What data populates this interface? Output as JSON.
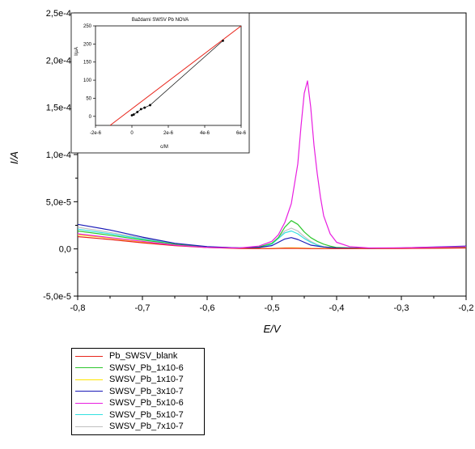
{
  "chart_data": {
    "type": "line",
    "xlabel": "E/V",
    "ylabel": "I/A",
    "xlim": [
      -0.8,
      -0.2
    ],
    "ylim": [
      -5e-05,
      0.00025
    ],
    "x_ticks": [
      "-0,8",
      "-0,7",
      "-0,6",
      "-0,5",
      "-0,4",
      "-0,3",
      "-0,2"
    ],
    "y_ticks": [
      "2,5e-4",
      "2,0e-4",
      "1,5e-4",
      "1,0e-4",
      "5,0e-5",
      "0,0",
      "-5,0e-5"
    ],
    "grid": false,
    "legend_position": "bottom-left",
    "series": [
      {
        "name": "Pb_SWSV_blank",
        "color": "#e8251b",
        "x": [
          -0.8,
          -0.75,
          -0.7,
          -0.65,
          -0.6,
          -0.55,
          -0.5,
          -0.48,
          -0.46,
          -0.44,
          -0.4,
          -0.35,
          -0.3,
          -0.25,
          -0.2
        ],
        "y": [
          1.3e-05,
          1e-05,
          6.5e-06,
          3.5e-06,
          1.5e-06,
          5e-07,
          3e-07,
          7e-07,
          6e-07,
          3e-07,
          3e-07,
          4e-07,
          5e-07,
          7e-07,
          1e-06
        ]
      },
      {
        "name": "SWSV_Pb_1x10-6",
        "color": "#2ec72e",
        "x": [
          -0.8,
          -0.75,
          -0.7,
          -0.65,
          -0.6,
          -0.55,
          -0.52,
          -0.5,
          -0.49,
          -0.48,
          -0.47,
          -0.46,
          -0.45,
          -0.44,
          -0.43,
          -0.42,
          -0.41,
          -0.4,
          -0.35,
          -0.3,
          -0.25,
          -0.2
        ],
        "y": [
          1.9e-05,
          1.45e-05,
          9.5e-06,
          5e-06,
          2e-06,
          1e-06,
          2e-06,
          6e-06,
          1.2e-05,
          2.3e-05,
          3e-05,
          2.6e-05,
          1.8e-05,
          1.2e-05,
          8e-06,
          5e-06,
          3e-06,
          1.5e-06,
          5e-07,
          7e-07,
          1e-06,
          1.5e-06
        ]
      },
      {
        "name": "SWSV_Pb_1x10-7",
        "color": "#ffe600",
        "x": [
          -0.8,
          -0.75,
          -0.7,
          -0.65,
          -0.6,
          -0.55,
          -0.5,
          -0.48,
          -0.47,
          -0.46,
          -0.44,
          -0.4,
          -0.35,
          -0.3,
          -0.25,
          -0.2
        ],
        "y": [
          1.5e-05,
          1.15e-05,
          7.5e-06,
          4e-06,
          1.5e-06,
          6e-07,
          5e-07,
          1e-06,
          1.2e-06,
          1e-06,
          6e-07,
          4e-07,
          4e-07,
          6e-07,
          9e-07,
          1.2e-06
        ]
      },
      {
        "name": "SWSV_Pb_3x10-7",
        "color": "#1a1ab8",
        "x": [
          -0.8,
          -0.75,
          -0.7,
          -0.65,
          -0.6,
          -0.55,
          -0.52,
          -0.5,
          -0.49,
          -0.48,
          -0.47,
          -0.46,
          -0.45,
          -0.44,
          -0.42,
          -0.4,
          -0.35,
          -0.3,
          -0.25,
          -0.2
        ],
        "y": [
          2.6e-05,
          2e-05,
          1.25e-05,
          6e-06,
          2.5e-06,
          1e-06,
          1.5e-06,
          3.5e-06,
          7e-06,
          1.05e-05,
          1.2e-05,
          1e-05,
          7e-06,
          4e-06,
          2e-06,
          1e-06,
          6e-07,
          1e-06,
          2e-06,
          3e-06
        ]
      },
      {
        "name": "SWSV_Pb_5x10-6",
        "color": "#e81ee0",
        "x": [
          -0.8,
          -0.75,
          -0.7,
          -0.65,
          -0.6,
          -0.55,
          -0.52,
          -0.5,
          -0.49,
          -0.48,
          -0.47,
          -0.46,
          -0.455,
          -0.45,
          -0.445,
          -0.44,
          -0.435,
          -0.43,
          -0.425,
          -0.42,
          -0.41,
          -0.4,
          -0.38,
          -0.35,
          -0.3,
          -0.25,
          -0.2
        ],
        "y": [
          1.6e-05,
          1.2e-05,
          8e-06,
          4e-06,
          1.5e-06,
          1e-06,
          3e-06,
          8e-06,
          1.5e-05,
          2.8e-05,
          4.8e-05,
          9e-05,
          0.00013,
          0.000165,
          0.000178,
          0.00015,
          0.00011,
          8e-05,
          5.5e-05,
          3.5e-05,
          1.6e-05,
          7e-06,
          2.5e-06,
          1e-06,
          1.2e-06,
          1.8e-06,
          2.5e-06
        ]
      },
      {
        "name": "SWSV_Pb_5x10-7",
        "color": "#33e0e0",
        "x": [
          -0.8,
          -0.75,
          -0.7,
          -0.65,
          -0.6,
          -0.55,
          -0.52,
          -0.5,
          -0.49,
          -0.48,
          -0.47,
          -0.46,
          -0.45,
          -0.44,
          -0.43,
          -0.42,
          -0.4,
          -0.35,
          -0.3,
          -0.25,
          -0.2
        ],
        "y": [
          2.1e-05,
          1.6e-05,
          1.05e-05,
          5e-06,
          2e-06,
          1e-06,
          2e-06,
          5e-06,
          1.1e-05,
          1.7e-05,
          1.9e-05,
          1.6e-05,
          1.1e-05,
          7e-06,
          4e-06,
          2e-06,
          1e-06,
          5e-07,
          8e-07,
          1.2e-06,
          1.8e-06
        ]
      },
      {
        "name": "SWSV_Pb_7x10-7",
        "color": "#c0c0c0",
        "x": [
          -0.8,
          -0.75,
          -0.7,
          -0.65,
          -0.6,
          -0.55,
          -0.52,
          -0.5,
          -0.49,
          -0.48,
          -0.47,
          -0.46,
          -0.45,
          -0.44,
          -0.43,
          -0.42,
          -0.4,
          -0.35,
          -0.3,
          -0.25,
          -0.2
        ],
        "y": [
          2.3e-05,
          1.75e-05,
          1.15e-05,
          5.5e-06,
          2.2e-06,
          1e-06,
          2e-06,
          5.5e-06,
          1.2e-05,
          1.9e-05,
          2.2e-05,
          1.9e-05,
          1.3e-05,
          8e-06,
          4.5e-06,
          2.3e-06,
          1.1e-06,
          6e-07,
          9e-07,
          1.3e-06,
          2e-06
        ]
      }
    ],
    "inset": {
      "type": "scatter",
      "title": "Baždarni SWSV Pb NOVA",
      "xlabel": "c/M",
      "ylabel": "I/µA",
      "xlim": [
        -2e-06,
        6e-06
      ],
      "ylim": [
        -25,
        250
      ],
      "x_ticks": [
        "-2e-6",
        "0",
        "2e-6",
        "4e-6",
        "6e-6"
      ],
      "y_ticks": [
        "250",
        "200",
        "150",
        "100",
        "50",
        "0"
      ],
      "points": {
        "x": [
          0,
          1e-07,
          3e-07,
          5e-07,
          7e-07,
          1e-06,
          5e-06
        ],
        "y": [
          3,
          5,
          12,
          20,
          24,
          31,
          209
        ],
        "color": "#000000"
      },
      "fit_line": {
        "x": [
          -1.2e-06,
          6e-06
        ],
        "y": [
          -25,
          250
        ],
        "color": "#e8251b"
      }
    }
  }
}
